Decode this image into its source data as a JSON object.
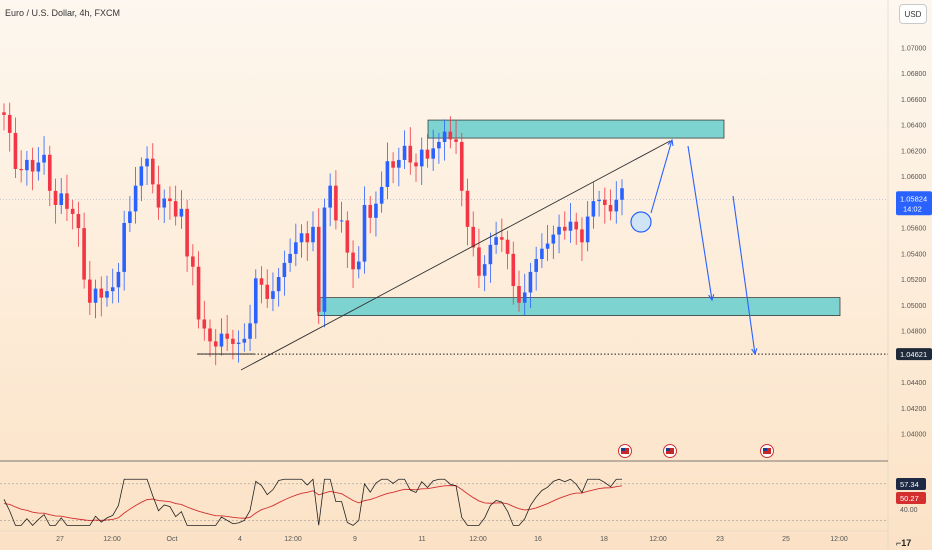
{
  "header": {
    "title": "Euro / U.S. Dollar, 4h, FXCM",
    "currency_button": "USD"
  },
  "price_axis": {
    "labels": [
      "1.07000",
      "1.06800",
      "1.06600",
      "1.06400",
      "1.06200",
      "1.06000",
      "1.05800",
      "1.05600",
      "1.05400",
      "1.05200",
      "1.05000",
      "1.04800",
      "1.04600",
      "1.04400",
      "1.04200",
      "1.04000"
    ],
    "last_price": "1.05824",
    "countdown": "14:02",
    "level_tag": "1.04621"
  },
  "time_axis": {
    "labels": [
      "27",
      "12:00",
      "Oct",
      "4",
      "12:00",
      "9",
      "11",
      "12:00",
      "16",
      "18",
      "12:00",
      "23",
      "25",
      "12:00"
    ]
  },
  "rsi": {
    "value": "57.34",
    "ma_value": "50.27",
    "level_label": "40.00"
  },
  "colors": {
    "up": "#2962ff",
    "down": "#f23645",
    "zone_fill": "#7dd3d0",
    "zone_stroke": "#2a2a2a",
    "arrow": "#2962ff",
    "rsi_line": "#222222",
    "rsi_ma": "#d32f2f",
    "last_price_bg": "#2962ff",
    "rsi_tag": "#1e2a44",
    "ma_tag": "#d32f2f"
  },
  "icons": [
    "us-flag-event-icon",
    "us-flag-event-icon",
    "us-flag-event-icon"
  ],
  "chart_data": {
    "type": "candlestick",
    "symbol": "Euro / U.S. Dollar",
    "interval": "4h",
    "ylim": [
      1.0385,
      1.0715
    ],
    "closes": [
      1.0648,
      1.0634,
      1.0606,
      1.0605,
      1.0613,
      1.0604,
      1.0611,
      1.0617,
      1.0589,
      1.0578,
      1.0587,
      1.0575,
      1.0571,
      1.056,
      1.052,
      1.0502,
      1.0513,
      1.0506,
      1.0511,
      1.0514,
      1.0526,
      1.0564,
      1.0573,
      1.0593,
      1.0608,
      1.0614,
      1.0594,
      1.0576,
      1.0583,
      1.0581,
      1.0569,
      1.0575,
      1.0538,
      1.053,
      1.0489,
      1.0482,
      1.0472,
      1.0468,
      1.0478,
      1.0474,
      1.047,
      1.0471,
      1.0474,
      1.0486,
      1.0521,
      1.0516,
      1.0505,
      1.0511,
      1.0522,
      1.0533,
      1.054,
      1.0549,
      1.0556,
      1.0549,
      1.0561,
      1.0495,
      1.0576,
      1.0593,
      1.0566,
      1.0566,
      1.0541,
      1.0528,
      1.0534,
      1.0578,
      1.0568,
      1.0579,
      1.0592,
      1.0612,
      1.0607,
      1.0613,
      1.0624,
      1.0611,
      1.0608,
      1.0621,
      1.0614,
      1.0622,
      1.0627,
      1.0635,
      1.0629,
      1.0627,
      1.0589,
      1.0561,
      1.0545,
      1.0523,
      1.0532,
      1.0547,
      1.0553,
      1.0551,
      1.054,
      1.0515,
      1.0502,
      1.051,
      1.0526,
      1.0536,
      1.0544,
      1.0548,
      1.0555,
      1.0561,
      1.0558,
      1.0565,
      1.0559,
      1.0549,
      1.0569,
      1.0581,
      1.0582,
      1.0578,
      1.0573,
      1.0582,
      1.0591
    ],
    "first_open": 1.065,
    "horizontal_line": 1.04621,
    "last_price": 1.05824,
    "zones": [
      {
        "from": 1.063,
        "to": 1.0644
      },
      {
        "from": 1.0492,
        "to": 1.0506
      }
    ],
    "rsi": {
      "value": 57.34,
      "ma": 50.27,
      "level": 40.0
    }
  }
}
